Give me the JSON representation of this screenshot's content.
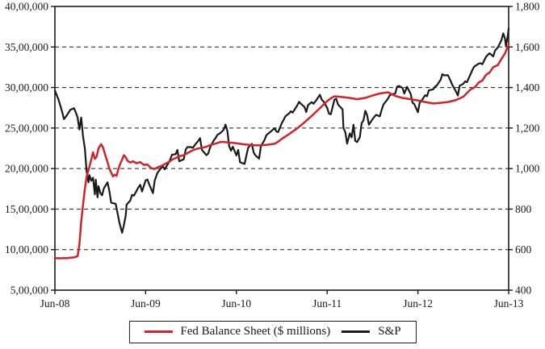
{
  "chart_data": {
    "type": "line",
    "title": "",
    "xlabel": "",
    "ylabel_left": "",
    "ylabel_right": "",
    "grid": "dashed-horizontal",
    "legend_position": "bottom-center",
    "x_range": [
      0,
      5
    ],
    "x_tick_labels": [
      "Jun-08",
      "Jun-09",
      "Jun-10",
      "Jun-11",
      "Jun-12",
      "Jun-13"
    ],
    "left_axis": {
      "min": 500000,
      "max": 4000000,
      "tick_labels": [
        "40,00,000",
        "35,00,000",
        "30,00,000",
        "25,00,000",
        "20,00,000",
        "15,00,000",
        "10,00,000",
        "5,00,000"
      ]
    },
    "right_axis": {
      "min": 400,
      "max": 1800,
      "tick_labels": [
        "1,800",
        "1,600",
        "1,400",
        "1,200",
        "1,000",
        "800",
        "600",
        "400"
      ]
    },
    "series": [
      {
        "name": "Fed Balance Sheet ($ millions)",
        "axis": "left",
        "color": "#d2232a",
        "points": [
          [
            0.0,
            895000
          ],
          [
            0.06,
            893000
          ],
          [
            0.1,
            897000
          ],
          [
            0.13,
            894000
          ],
          [
            0.17,
            901000
          ],
          [
            0.21,
            904000
          ],
          [
            0.25,
            920000
          ],
          [
            0.27,
            1060000
          ],
          [
            0.29,
            1350000
          ],
          [
            0.31,
            1550000
          ],
          [
            0.33,
            1750000
          ],
          [
            0.35,
            1900000
          ],
          [
            0.38,
            2020000
          ],
          [
            0.4,
            2110000
          ],
          [
            0.42,
            2200000
          ],
          [
            0.44,
            2120000
          ],
          [
            0.46,
            2150000
          ],
          [
            0.48,
            2250000
          ],
          [
            0.51,
            2300000
          ],
          [
            0.53,
            2260000
          ],
          [
            0.56,
            2150000
          ],
          [
            0.58,
            2080000
          ],
          [
            0.6,
            2000000
          ],
          [
            0.62,
            1950000
          ],
          [
            0.64,
            1905000
          ],
          [
            0.66,
            1925000
          ],
          [
            0.68,
            1910000
          ],
          [
            0.7,
            1995000
          ],
          [
            0.72,
            2060000
          ],
          [
            0.74,
            2110000
          ],
          [
            0.76,
            2165000
          ],
          [
            0.78,
            2140000
          ],
          [
            0.8,
            2095000
          ],
          [
            0.83,
            2075000
          ],
          [
            0.86,
            2090000
          ],
          [
            0.9,
            2065000
          ],
          [
            0.94,
            2080000
          ],
          [
            0.98,
            2045000
          ],
          [
            1.02,
            2050000
          ],
          [
            1.06,
            2005000
          ],
          [
            1.1,
            1995000
          ],
          [
            1.14,
            2020000
          ],
          [
            1.17,
            2030000
          ],
          [
            1.22,
            2060000
          ],
          [
            1.26,
            2085000
          ],
          [
            1.3,
            2115000
          ],
          [
            1.34,
            2135000
          ],
          [
            1.38,
            2155000
          ],
          [
            1.42,
            2165000
          ],
          [
            1.46,
            2190000
          ],
          [
            1.5,
            2215000
          ],
          [
            1.54,
            2235000
          ],
          [
            1.58,
            2248000
          ],
          [
            1.63,
            2258000
          ],
          [
            1.67,
            2270000
          ],
          [
            1.71,
            2290000
          ],
          [
            1.75,
            2302000
          ],
          [
            1.79,
            2316000
          ],
          [
            1.83,
            2330000
          ],
          [
            1.88,
            2326000
          ],
          [
            1.92,
            2321000
          ],
          [
            1.96,
            2317000
          ],
          [
            2.0,
            2312000
          ],
          [
            2.08,
            2300000
          ],
          [
            2.17,
            2289000
          ],
          [
            2.25,
            2286000
          ],
          [
            2.33,
            2292000
          ],
          [
            2.42,
            2306000
          ],
          [
            2.46,
            2332000
          ],
          [
            2.5,
            2366000
          ],
          [
            2.58,
            2425000
          ],
          [
            2.67,
            2496000
          ],
          [
            2.75,
            2570000
          ],
          [
            2.83,
            2650000
          ],
          [
            2.92,
            2746000
          ],
          [
            3.0,
            2832000
          ],
          [
            3.04,
            2866000
          ],
          [
            3.08,
            2891000
          ],
          [
            3.13,
            2886000
          ],
          [
            3.17,
            2881000
          ],
          [
            3.25,
            2871000
          ],
          [
            3.33,
            2856000
          ],
          [
            3.42,
            2871000
          ],
          [
            3.5,
            2901000
          ],
          [
            3.58,
            2926000
          ],
          [
            3.67,
            2941000
          ],
          [
            3.75,
            2896000
          ],
          [
            3.83,
            2871000
          ],
          [
            3.92,
            2856000
          ],
          [
            4.0,
            2841000
          ],
          [
            4.08,
            2821000
          ],
          [
            4.17,
            2803000
          ],
          [
            4.25,
            2811000
          ],
          [
            4.33,
            2821000
          ],
          [
            4.42,
            2846000
          ],
          [
            4.5,
            2886000
          ],
          [
            4.54,
            2931000
          ],
          [
            4.58,
            2976000
          ],
          [
            4.63,
            3006000
          ],
          [
            4.67,
            3061000
          ],
          [
            4.71,
            3086000
          ],
          [
            4.75,
            3156000
          ],
          [
            4.79,
            3186000
          ],
          [
            4.83,
            3251000
          ],
          [
            4.88,
            3276000
          ],
          [
            4.92,
            3351000
          ],
          [
            4.96,
            3421000
          ],
          [
            5.0,
            3530000
          ]
        ]
      },
      {
        "name": "S&P",
        "axis": "right",
        "color": "#1a1a1a",
        "points": [
          [
            0.0,
            1385
          ],
          [
            0.04,
            1340
          ],
          [
            0.08,
            1280
          ],
          [
            0.1,
            1244
          ],
          [
            0.13,
            1262
          ],
          [
            0.17,
            1290
          ],
          [
            0.21,
            1298
          ],
          [
            0.23,
            1277
          ],
          [
            0.25,
            1252
          ],
          [
            0.27,
            1193
          ],
          [
            0.29,
            1252
          ],
          [
            0.31,
            1160
          ],
          [
            0.33,
            1099
          ],
          [
            0.35,
            985
          ],
          [
            0.37,
            932
          ],
          [
            0.38,
            968
          ],
          [
            0.4,
            940
          ],
          [
            0.42,
            955
          ],
          [
            0.44,
            873
          ],
          [
            0.45,
            945
          ],
          [
            0.47,
            858
          ],
          [
            0.48,
            913
          ],
          [
            0.5,
            880
          ],
          [
            0.52,
            868
          ],
          [
            0.54,
            903
          ],
          [
            0.58,
            932
          ],
          [
            0.6,
            890
          ],
          [
            0.62,
            832
          ],
          [
            0.67,
            826
          ],
          [
            0.69,
            780
          ],
          [
            0.71,
            735
          ],
          [
            0.74,
            683
          ],
          [
            0.76,
            720
          ],
          [
            0.78,
            768
          ],
          [
            0.79,
            822
          ],
          [
            0.83,
            842
          ],
          [
            0.85,
            870
          ],
          [
            0.87,
            866
          ],
          [
            0.92,
            907
          ],
          [
            0.94,
            920
          ],
          [
            0.96,
            887
          ],
          [
            1.0,
            942
          ],
          [
            1.02,
            946
          ],
          [
            1.04,
            921
          ],
          [
            1.08,
            879
          ],
          [
            1.1,
            940
          ],
          [
            1.13,
            979
          ],
          [
            1.17,
            1002
          ],
          [
            1.19,
            1010
          ],
          [
            1.21,
            996
          ],
          [
            1.25,
            1026
          ],
          [
            1.27,
            1043
          ],
          [
            1.29,
            1068
          ],
          [
            1.33,
            1071
          ],
          [
            1.35,
            1092
          ],
          [
            1.37,
            1036
          ],
          [
            1.42,
            1046
          ],
          [
            1.44,
            1093
          ],
          [
            1.46,
            1106
          ],
          [
            1.5,
            1106
          ],
          [
            1.52,
            1102
          ],
          [
            1.54,
            1115
          ],
          [
            1.58,
            1137
          ],
          [
            1.6,
            1150
          ],
          [
            1.62,
            1092
          ],
          [
            1.67,
            1066
          ],
          [
            1.69,
            1075
          ],
          [
            1.71,
            1104
          ],
          [
            1.75,
            1139
          ],
          [
            1.77,
            1150
          ],
          [
            1.79,
            1166
          ],
          [
            1.83,
            1178
          ],
          [
            1.86,
            1192
          ],
          [
            1.88,
            1217
          ],
          [
            1.9,
            1186
          ],
          [
            1.92,
            1111
          ],
          [
            1.94,
            1088
          ],
          [
            1.96,
            1108
          ],
          [
            2.0,
            1065
          ],
          [
            2.02,
            1092
          ],
          [
            2.04,
            1031
          ],
          [
            2.09,
            1023
          ],
          [
            2.11,
            1065
          ],
          [
            2.13,
            1103
          ],
          [
            2.17,
            1122
          ],
          [
            2.19,
            1079
          ],
          [
            2.21,
            1065
          ],
          [
            2.25,
            1049
          ],
          [
            2.27,
            1109
          ],
          [
            2.29,
            1126
          ],
          [
            2.31,
            1141
          ],
          [
            2.33,
            1165
          ],
          [
            2.36,
            1176
          ],
          [
            2.38,
            1183
          ],
          [
            2.42,
            1199
          ],
          [
            2.44,
            1183
          ],
          [
            2.46,
            1180
          ],
          [
            2.5,
            1224
          ],
          [
            2.52,
            1240
          ],
          [
            2.54,
            1258
          ],
          [
            2.58,
            1272
          ],
          [
            2.6,
            1283
          ],
          [
            2.62,
            1276
          ],
          [
            2.67,
            1311
          ],
          [
            2.69,
            1329
          ],
          [
            2.71,
            1320
          ],
          [
            2.75,
            1304
          ],
          [
            2.77,
            1279
          ],
          [
            2.79,
            1314
          ],
          [
            2.83,
            1328
          ],
          [
            2.85,
            1320
          ],
          [
            2.88,
            1337
          ],
          [
            2.92,
            1364
          ],
          [
            2.94,
            1340
          ],
          [
            2.96,
            1331
          ],
          [
            3.0,
            1300
          ],
          [
            3.02,
            1271
          ],
          [
            3.04,
            1268
          ],
          [
            3.08,
            1340
          ],
          [
            3.1,
            1345
          ],
          [
            3.12,
            1316
          ],
          [
            3.17,
            1292
          ],
          [
            3.18,
            1199
          ],
          [
            3.2,
            1179
          ],
          [
            3.22,
            1123
          ],
          [
            3.25,
            1174
          ],
          [
            3.27,
            1154
          ],
          [
            3.29,
            1216
          ],
          [
            3.31,
            1136
          ],
          [
            3.33,
            1131
          ],
          [
            3.36,
            1155
          ],
          [
            3.38,
            1224
          ],
          [
            3.4,
            1238
          ],
          [
            3.42,
            1285
          ],
          [
            3.44,
            1264
          ],
          [
            3.46,
            1216
          ],
          [
            3.5,
            1244
          ],
          [
            3.52,
            1255
          ],
          [
            3.54,
            1265
          ],
          [
            3.58,
            1258
          ],
          [
            3.6,
            1289
          ],
          [
            3.62,
            1316
          ],
          [
            3.67,
            1345
          ],
          [
            3.69,
            1362
          ],
          [
            3.71,
            1366
          ],
          [
            3.75,
            1370
          ],
          [
            3.77,
            1404
          ],
          [
            3.79,
            1408
          ],
          [
            3.83,
            1398
          ],
          [
            3.85,
            1370
          ],
          [
            3.88,
            1403
          ],
          [
            3.92,
            1369
          ],
          [
            3.94,
            1325
          ],
          [
            3.96,
            1318
          ],
          [
            4.0,
            1278
          ],
          [
            4.02,
            1325
          ],
          [
            4.04,
            1335
          ],
          [
            4.08,
            1362
          ],
          [
            4.1,
            1357
          ],
          [
            4.12,
            1386
          ],
          [
            4.17,
            1391
          ],
          [
            4.19,
            1405
          ],
          [
            4.21,
            1411
          ],
          [
            4.25,
            1438
          ],
          [
            4.27,
            1466
          ],
          [
            4.29,
            1460
          ],
          [
            4.33,
            1461
          ],
          [
            4.36,
            1433
          ],
          [
            4.38,
            1412
          ],
          [
            4.42,
            1380
          ],
          [
            4.44,
            1360
          ],
          [
            4.46,
            1409
          ],
          [
            4.5,
            1418
          ],
          [
            4.52,
            1430
          ],
          [
            4.54,
            1426
          ],
          [
            4.58,
            1466
          ],
          [
            4.6,
            1486
          ],
          [
            4.62,
            1503
          ],
          [
            4.67,
            1518
          ],
          [
            4.69,
            1520
          ],
          [
            4.71,
            1515
          ],
          [
            4.75,
            1551
          ],
          [
            4.77,
            1561
          ],
          [
            4.79,
            1569
          ],
          [
            4.83,
            1553
          ],
          [
            4.85,
            1582
          ],
          [
            4.88,
            1597
          ],
          [
            4.92,
            1633
          ],
          [
            4.94,
            1667
          ],
          [
            4.96,
            1640
          ],
          [
            4.97,
            1604
          ],
          [
            4.99,
            1655
          ],
          [
            5.0,
            1692
          ]
        ]
      }
    ]
  },
  "legend": {
    "items": [
      {
        "label": "Fed Balance Sheet ($ millions)",
        "color": "#d2232a"
      },
      {
        "label": "S&P",
        "color": "#1a1a1a"
      }
    ]
  }
}
